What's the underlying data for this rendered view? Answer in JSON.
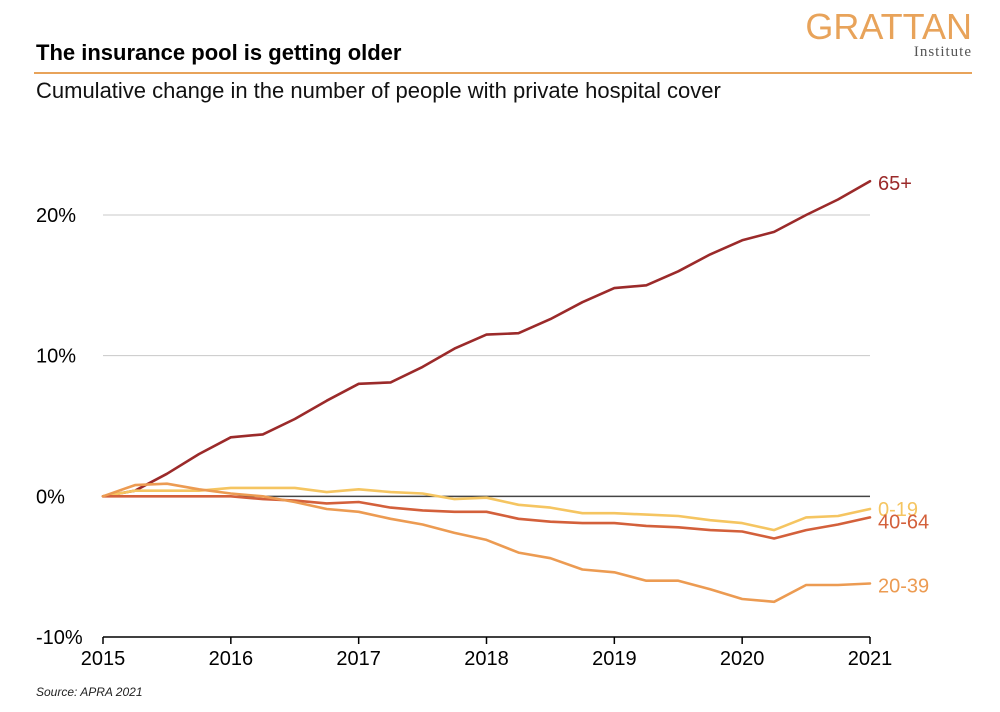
{
  "header": {
    "title": "The insurance pool is getting older",
    "subtitle": "Cumulative change in the number of people with private hospital cover",
    "logo_word": "GRATTAN",
    "logo_sub": "Institute",
    "accent_color": "#e8a35a"
  },
  "footer": {
    "source": "Source: APRA 2021"
  },
  "chart_data": {
    "type": "line",
    "title": "The insurance pool is getting older",
    "subtitle": "Cumulative change in the number of people with private hospital cover",
    "xlabel": "",
    "ylabel": "",
    "xlim": [
      2015,
      2021
    ],
    "ylim": [
      -10,
      20
    ],
    "x_ticks": [
      2015,
      2016,
      2017,
      2018,
      2019,
      2020,
      2021
    ],
    "x_tick_labels": [
      "2015",
      "2016",
      "2017",
      "2018",
      "2019",
      "2020",
      "2021"
    ],
    "y_ticks": [
      -10,
      0,
      10,
      20
    ],
    "y_tick_labels": [
      "-10%",
      "0%",
      "10%",
      "20%"
    ],
    "grid": "horizontal",
    "legend": "direct labels at right",
    "x": [
      2015,
      2015.25,
      2015.5,
      2015.75,
      2016,
      2016.25,
      2016.5,
      2016.75,
      2017,
      2017.25,
      2017.5,
      2017.75,
      2018,
      2018.25,
      2018.5,
      2018.75,
      2019,
      2019.25,
      2019.5,
      2019.75,
      2020,
      2020.25,
      2020.5,
      2020.75,
      2021
    ],
    "series": [
      {
        "name": "65+",
        "color": "#9b2a2a",
        "values": [
          0,
          0.4,
          1.6,
          3.0,
          4.2,
          4.4,
          5.5,
          6.8,
          8.0,
          8.1,
          9.2,
          10.5,
          11.5,
          11.6,
          12.6,
          13.8,
          14.8,
          15.0,
          16.0,
          17.2,
          18.2,
          18.8,
          20.0,
          21.1,
          22.4
        ]
      },
      {
        "name": "0-19",
        "color": "#f5c561",
        "values": [
          0,
          0.4,
          0.4,
          0.4,
          0.6,
          0.6,
          0.6,
          0.3,
          0.5,
          0.3,
          0.2,
          -0.2,
          -0.1,
          -0.6,
          -0.8,
          -1.2,
          -1.2,
          -1.3,
          -1.4,
          -1.7,
          -1.9,
          -2.4,
          -1.5,
          -1.4,
          -0.9
        ]
      },
      {
        "name": "40-64",
        "color": "#d3603b",
        "values": [
          0,
          0,
          0,
          0,
          0,
          -0.2,
          -0.3,
          -0.5,
          -0.4,
          -0.8,
          -1.0,
          -1.1,
          -1.1,
          -1.6,
          -1.8,
          -1.9,
          -1.9,
          -2.1,
          -2.2,
          -2.4,
          -2.5,
          -3.0,
          -2.4,
          -2.0,
          -1.5
        ]
      },
      {
        "name": "20-39",
        "color": "#ec9b52",
        "values": [
          0,
          0.8,
          0.9,
          0.5,
          0.2,
          0.0,
          -0.4,
          -0.9,
          -1.1,
          -1.6,
          -2.0,
          -2.6,
          -3.1,
          -4.0,
          -4.4,
          -5.2,
          -5.4,
          -6.0,
          -6.0,
          -6.6,
          -7.3,
          -7.5,
          -6.3,
          -6.3,
          -6.2
        ]
      }
    ]
  }
}
